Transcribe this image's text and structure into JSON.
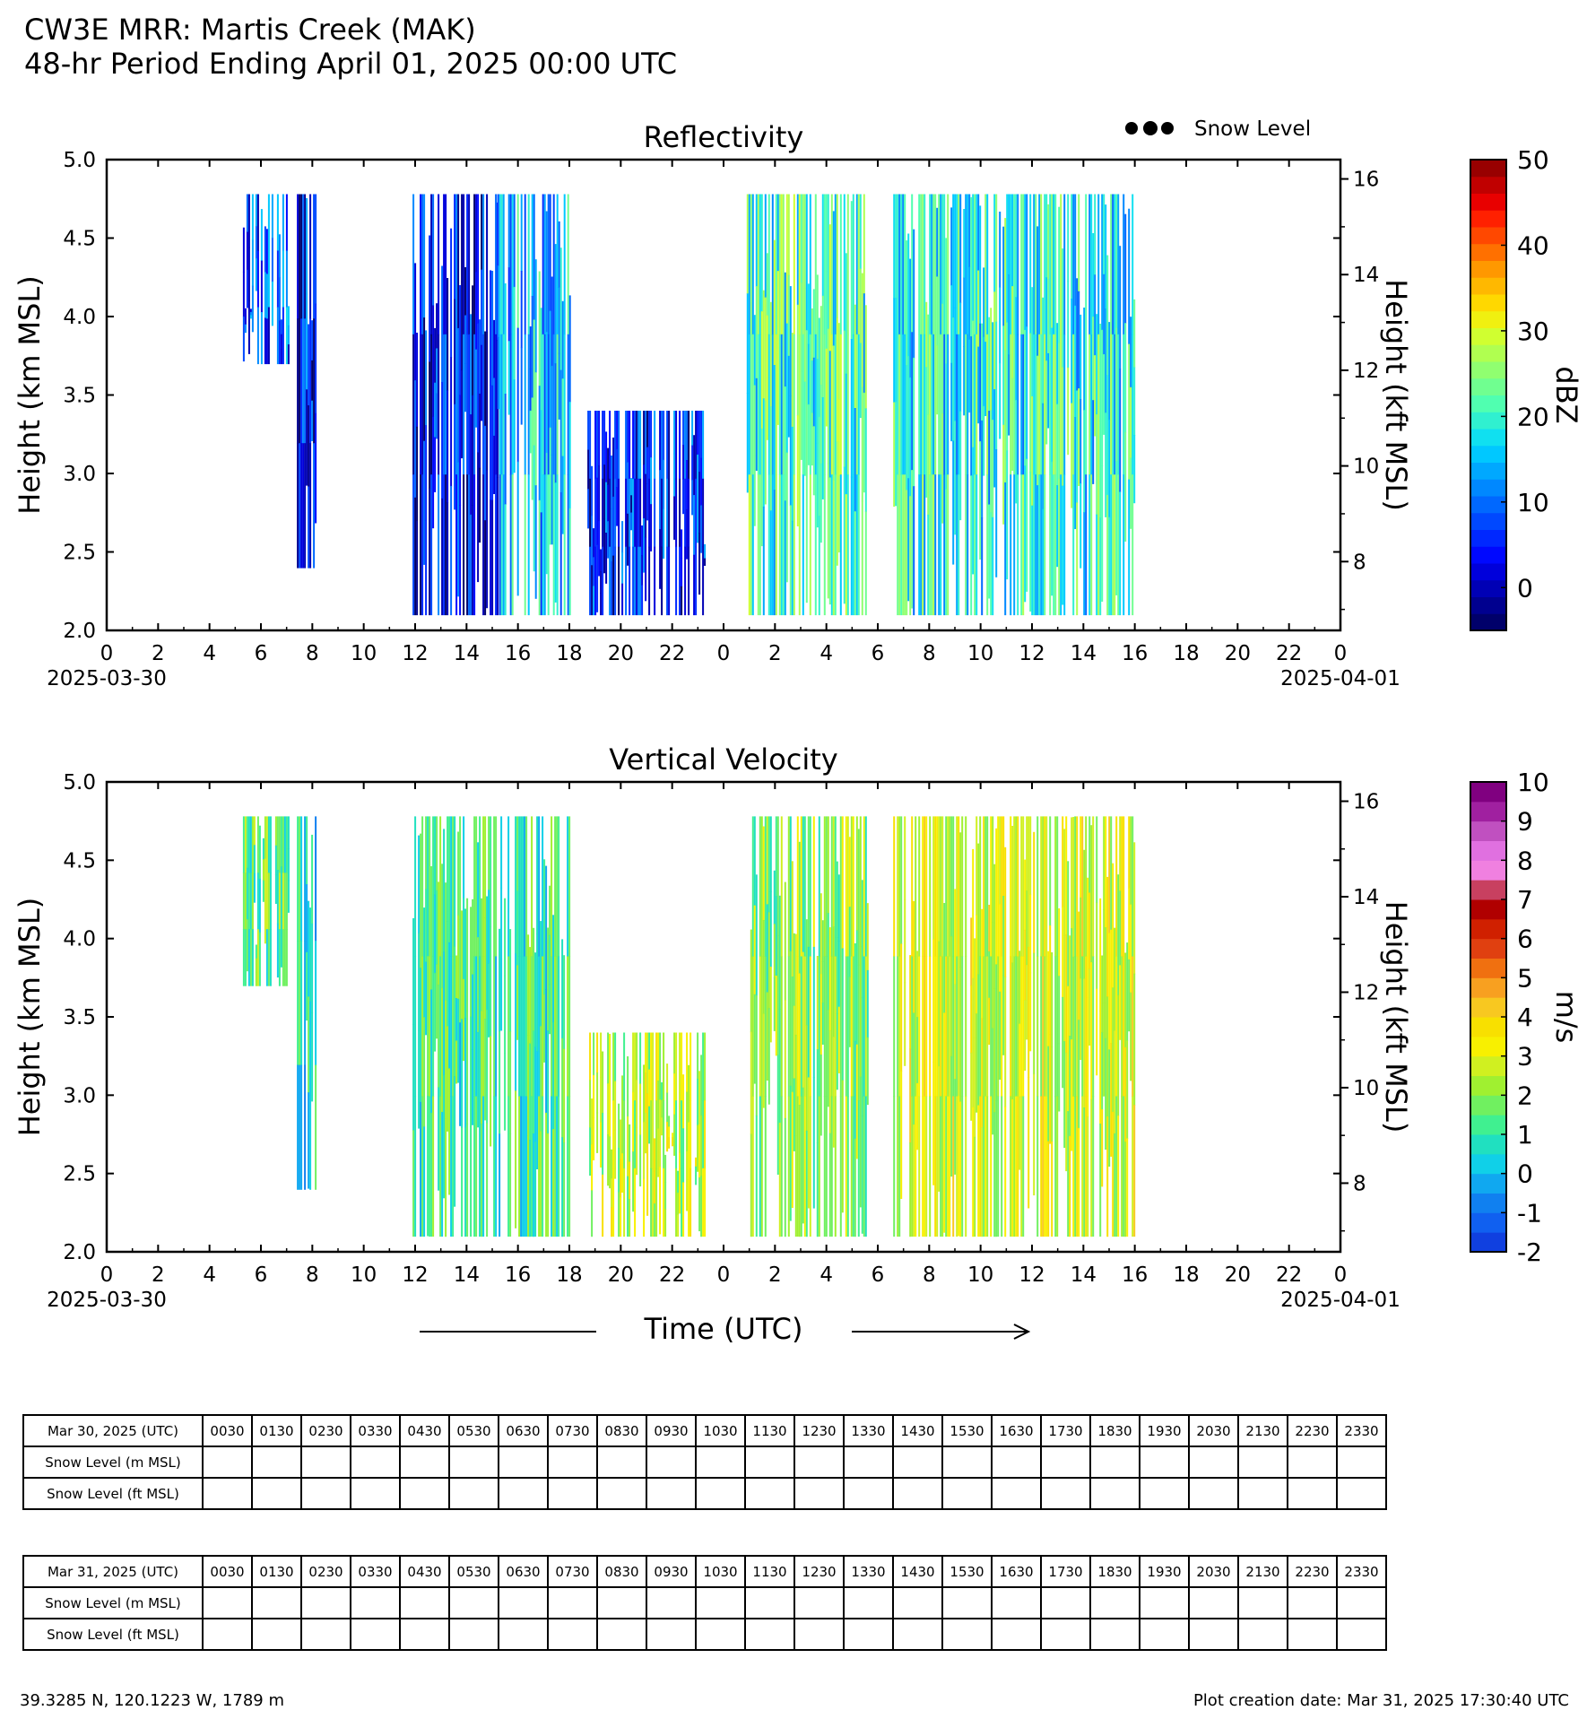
{
  "header": {
    "title": "CW3E MRR: Martis Creek (MAK)",
    "subtitle": "48-hr Period Ending April 01, 2025 00:00 UTC"
  },
  "legend": {
    "label": "Snow Level",
    "marker_color": "#000000"
  },
  "chart_data": [
    {
      "type": "heatmap",
      "title": "Reflectivity",
      "ylabel": "Height (km MSL)",
      "ylabel_right": "Height (kft MSL)",
      "ylim": [
        2.0,
        5.0
      ],
      "y_ticks": [
        "2.0",
        "2.5",
        "3.0",
        "3.5",
        "4.0",
        "4.5",
        "5.0"
      ],
      "y_right_ticks": [
        "8",
        "10",
        "12",
        "14",
        "16"
      ],
      "xlim": [
        "2025-03-30 00:00",
        "2025-04-01 00:00"
      ],
      "x_tick_labels": [
        "0",
        "2",
        "4",
        "6",
        "8",
        "10",
        "12",
        "14",
        "16",
        "18",
        "20",
        "22",
        "0",
        "2",
        "4",
        "6",
        "8",
        "10",
        "12",
        "14",
        "16",
        "18",
        "20",
        "22",
        "0"
      ],
      "x_date_start": "2025-03-30",
      "x_date_end": "2025-04-01",
      "colorbar": {
        "unit": "dBZ",
        "vmin": -5,
        "vmax": 50,
        "tick_labels": [
          "0",
          "10",
          "20",
          "30",
          "40",
          "50"
        ],
        "tick_values": [
          0,
          10,
          20,
          30,
          40,
          50
        ],
        "colors": [
          "#00006a",
          "#00008f",
          "#0000b5",
          "#0000db",
          "#0008ff",
          "#0028ff",
          "#0048ff",
          "#0068ff",
          "#0088ff",
          "#00a8ff",
          "#00c8ff",
          "#10e0f0",
          "#30f0d0",
          "#50ffb0",
          "#70ff90",
          "#90ff70",
          "#b0ff50",
          "#d0ff30",
          "#f0f010",
          "#ffd800",
          "#ffb800",
          "#ff9800",
          "#ff7000",
          "#ff4800",
          "#ff2000",
          "#e80000",
          "#c00000",
          "#980000"
        ]
      },
      "echo_periods": [
        {
          "start_hour": 5.3,
          "end_hour": 7.1,
          "min_height_km": 3.7,
          "max_height_km": 4.78,
          "dominant_dbz": 8
        },
        {
          "start_hour": 7.4,
          "end_hour": 8.1,
          "min_height_km": 2.4,
          "max_height_km": 4.78,
          "dominant_dbz": 4
        },
        {
          "start_hour": 11.9,
          "end_hour": 15.2,
          "min_height_km": 2.1,
          "max_height_km": 4.78,
          "dominant_dbz": 3
        },
        {
          "start_hour": 15.2,
          "end_hour": 18.0,
          "min_height_km": 2.1,
          "max_height_km": 4.78,
          "dominant_dbz": 15
        },
        {
          "start_hour": 18.7,
          "end_hour": 23.3,
          "min_height_km": 2.1,
          "max_height_km": 3.4,
          "dominant_dbz": 5
        },
        {
          "start_hour": 24.9,
          "end_hour": 29.6,
          "min_height_km": 2.1,
          "max_height_km": 4.78,
          "dominant_dbz": 21
        },
        {
          "start_hour": 30.6,
          "end_hour": 40.0,
          "min_height_km": 2.1,
          "max_height_km": 4.78,
          "dominant_dbz": 19
        }
      ]
    },
    {
      "type": "heatmap",
      "title": "Vertical Velocity",
      "ylabel": "Height (km MSL)",
      "ylabel_right": "Height (kft MSL)",
      "xlabel": "Time (UTC)",
      "ylim": [
        2.0,
        5.0
      ],
      "y_ticks": [
        "2.0",
        "2.5",
        "3.0",
        "3.5",
        "4.0",
        "4.5",
        "5.0"
      ],
      "y_right_ticks": [
        "8",
        "10",
        "12",
        "14",
        "16"
      ],
      "xlim": [
        "2025-03-30 00:00",
        "2025-04-01 00:00"
      ],
      "x_tick_labels": [
        "0",
        "2",
        "4",
        "6",
        "8",
        "10",
        "12",
        "14",
        "16",
        "18",
        "20",
        "22",
        "0",
        "2",
        "4",
        "6",
        "8",
        "10",
        "12",
        "14",
        "16",
        "18",
        "20",
        "22",
        "0"
      ],
      "x_date_start": "2025-03-30",
      "x_date_end": "2025-04-01",
      "colorbar": {
        "unit": "m/s",
        "vmin": -2,
        "vmax": 10,
        "tick_labels": [
          "-2",
          "-1",
          "0",
          "1",
          "2",
          "3",
          "4",
          "5",
          "6",
          "7",
          "8",
          "9",
          "10"
        ],
        "tick_values": [
          -2,
          -1,
          0,
          1,
          2,
          3,
          4,
          5,
          6,
          7,
          8,
          9,
          10
        ],
        "colors": [
          "#1040e0",
          "#1060f0",
          "#1080f0",
          "#10a8f0",
          "#10d0e8",
          "#20e0c0",
          "#40f090",
          "#70f060",
          "#a0f030",
          "#d0f020",
          "#f8f000",
          "#f8e000",
          "#f8c820",
          "#f8a020",
          "#f07010",
          "#e04010",
          "#d02000",
          "#b00000",
          "#c84060",
          "#f080e0",
          "#e070e0",
          "#c050c0",
          "#a020a0",
          "#800080"
        ]
      },
      "echo_periods": [
        {
          "start_hour": 5.3,
          "end_hour": 7.1,
          "min_height_km": 3.7,
          "max_height_km": 4.78,
          "dominant_ms": 1.5
        },
        {
          "start_hour": 7.4,
          "end_hour": 8.1,
          "min_height_km": 2.4,
          "max_height_km": 4.78,
          "dominant_ms": 0.5
        },
        {
          "start_hour": 11.9,
          "end_hour": 18.0,
          "min_height_km": 2.1,
          "max_height_km": 4.78,
          "dominant_ms": 1.2
        },
        {
          "start_hour": 18.7,
          "end_hour": 23.3,
          "min_height_km": 2.1,
          "max_height_km": 3.4,
          "dominant_ms": 2.5
        },
        {
          "start_hour": 24.9,
          "end_hour": 29.6,
          "min_height_km": 2.1,
          "max_height_km": 4.78,
          "dominant_ms": 2.0
        },
        {
          "start_hour": 30.6,
          "end_hour": 40.0,
          "min_height_km": 2.1,
          "max_height_km": 4.78,
          "dominant_ms": 2.8
        }
      ]
    }
  ],
  "snow_tables": [
    {
      "header": "Mar 30, 2025 (UTC)",
      "times": [
        "0030",
        "0130",
        "0230",
        "0330",
        "0430",
        "0530",
        "0630",
        "0730",
        "0830",
        "0930",
        "1030",
        "1130",
        "1230",
        "1330",
        "1430",
        "1530",
        "1630",
        "1730",
        "1830",
        "1930",
        "2030",
        "2130",
        "2230",
        "2330"
      ],
      "row_labels": [
        "Snow Level (m MSL)",
        "Snow Level (ft MSL)"
      ]
    },
    {
      "header": "Mar 31, 2025 (UTC)",
      "times": [
        "0030",
        "0130",
        "0230",
        "0330",
        "0430",
        "0530",
        "0630",
        "0730",
        "0830",
        "0930",
        "1030",
        "1130",
        "1230",
        "1330",
        "1430",
        "1530",
        "1630",
        "1730",
        "1830",
        "1930",
        "2030",
        "2130",
        "2230",
        "2330"
      ],
      "row_labels": [
        "Snow Level (m MSL)",
        "Snow Level (ft MSL)"
      ]
    }
  ],
  "footer": {
    "location": "39.3285 N, 120.1223 W, 1789 m",
    "creation_date": "Plot creation date: Mar 31, 2025 17:30:40 UTC"
  }
}
